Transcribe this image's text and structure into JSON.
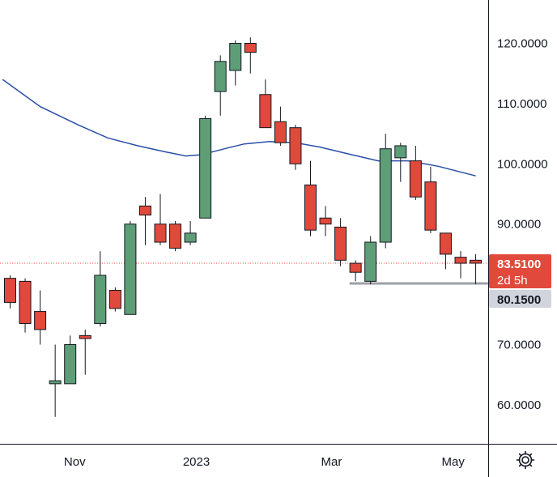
{
  "chart_data": {
    "type": "candlestick",
    "title": "",
    "xlabel": "",
    "ylabel": "",
    "ylim": [
      52,
      127
    ],
    "grid": false,
    "y_ticks": [
      {
        "value": 60,
        "label": "60.0000"
      },
      {
        "value": 70,
        "label": "70.0000"
      },
      {
        "value": 80,
        "label": "80.0000"
      },
      {
        "value": 90,
        "label": "90.0000"
      },
      {
        "value": 100,
        "label": "100.0000"
      },
      {
        "value": 110,
        "label": "110.0000"
      },
      {
        "value": 120,
        "label": "120.0000"
      }
    ],
    "x_ticks": [
      {
        "index": 4.3,
        "label": "Nov"
      },
      {
        "index": 12.4,
        "label": "2023"
      },
      {
        "index": 21.4,
        "label": "Mar"
      },
      {
        "index": 29.5,
        "label": "May"
      }
    ],
    "candles": [
      {
        "o": 81.0,
        "h": 81.5,
        "l": 76.0,
        "c": 77.0
      },
      {
        "o": 80.5,
        "h": 81.0,
        "l": 72.0,
        "c": 73.5
      },
      {
        "o": 75.5,
        "h": 79.0,
        "l": 70.0,
        "c": 72.5
      },
      {
        "o": 63.5,
        "h": 70.0,
        "l": 58.0,
        "c": 64.0
      },
      {
        "o": 63.5,
        "h": 71.5,
        "l": 63.5,
        "c": 70.0
      },
      {
        "o": 71.5,
        "h": 72.5,
        "l": 65.0,
        "c": 71.0
      },
      {
        "o": 73.5,
        "h": 85.5,
        "l": 73.0,
        "c": 81.5
      },
      {
        "o": 79.0,
        "h": 79.5,
        "l": 75.5,
        "c": 76.0
      },
      {
        "o": 75.0,
        "h": 90.5,
        "l": 75.0,
        "c": 90.0
      },
      {
        "o": 93.0,
        "h": 94.5,
        "l": 86.5,
        "c": 91.5
      },
      {
        "o": 90.0,
        "h": 95.0,
        "l": 86.5,
        "c": 87.0
      },
      {
        "o": 90.0,
        "h": 90.5,
        "l": 85.5,
        "c": 86.0
      },
      {
        "o": 87.0,
        "h": 90.5,
        "l": 86.5,
        "c": 88.5
      },
      {
        "o": 91.0,
        "h": 108.0,
        "l": 91.0,
        "c": 107.5
      },
      {
        "o": 112.0,
        "h": 118.0,
        "l": 108.0,
        "c": 117.0
      },
      {
        "o": 115.5,
        "h": 120.5,
        "l": 113.0,
        "c": 120.0
      },
      {
        "o": 120.0,
        "h": 121.0,
        "l": 115.0,
        "c": 118.5
      },
      {
        "o": 111.5,
        "h": 114.0,
        "l": 106.0,
        "c": 106.0
      },
      {
        "o": 107.0,
        "h": 109.5,
        "l": 103.0,
        "c": 103.5
      },
      {
        "o": 106.0,
        "h": 106.5,
        "l": 99.0,
        "c": 100.0
      },
      {
        "o": 96.5,
        "h": 100.5,
        "l": 88.0,
        "c": 89.0
      },
      {
        "o": 91.0,
        "h": 93.0,
        "l": 88.0,
        "c": 90.0
      },
      {
        "o": 89.5,
        "h": 91.0,
        "l": 83.0,
        "c": 84.0
      },
      {
        "o": 83.5,
        "h": 84.0,
        "l": 80.5,
        "c": 82.0
      },
      {
        "o": 80.5,
        "h": 88.0,
        "l": 80.0,
        "c": 87.0
      },
      {
        "o": 87.0,
        "h": 105.0,
        "l": 86.0,
        "c": 102.5
      },
      {
        "o": 101.0,
        "h": 103.5,
        "l": 97.0,
        "c": 103.0
      },
      {
        "o": 100.5,
        "h": 103.0,
        "l": 94.0,
        "c": 94.5
      },
      {
        "o": 97.0,
        "h": 99.5,
        "l": 88.5,
        "c": 89.0
      },
      {
        "o": 88.5,
        "h": 88.5,
        "l": 82.5,
        "c": 85.0
      },
      {
        "o": 84.5,
        "h": 85.5,
        "l": 81.0,
        "c": 83.5
      },
      {
        "o": 84.0,
        "h": 85.0,
        "l": 80.0,
        "c": 83.51
      }
    ],
    "moving_average": {
      "color": "#2a4fa8",
      "points": [
        {
          "index": -0.5,
          "value": 114.0
        },
        {
          "index": 2,
          "value": 109.5
        },
        {
          "index": 4.5,
          "value": 106.5
        },
        {
          "index": 6.5,
          "value": 104.3
        },
        {
          "index": 8.5,
          "value": 103.0
        },
        {
          "index": 10.3,
          "value": 102.0
        },
        {
          "index": 11.7,
          "value": 101.3
        },
        {
          "index": 12.7,
          "value": 101.5
        },
        {
          "index": 14.6,
          "value": 102.7
        },
        {
          "index": 15.6,
          "value": 103.3
        },
        {
          "index": 17.3,
          "value": 103.7
        },
        {
          "index": 19.0,
          "value": 103.5
        },
        {
          "index": 20.6,
          "value": 102.8
        },
        {
          "index": 22.6,
          "value": 101.6
        },
        {
          "index": 24.5,
          "value": 100.5
        },
        {
          "index": 26.5,
          "value": 100.5
        },
        {
          "index": 28.5,
          "value": 99.6
        },
        {
          "index": 31.0,
          "value": 98.0
        }
      ]
    },
    "horizontal_line": {
      "value": 80.15,
      "from_index": 22.6,
      "color": "#9ea0a8"
    },
    "last_price_line": {
      "value": 83.51,
      "color": "#e0493b"
    },
    "labels": {
      "last_price": "83.5100",
      "countdown": "2d 5h",
      "level": "80.1500"
    },
    "colors": {
      "up": "#5d9e77",
      "down": "#e0493b",
      "text": "#131722",
      "axis": "#131722",
      "level_tag": "#d1d4dc"
    }
  }
}
